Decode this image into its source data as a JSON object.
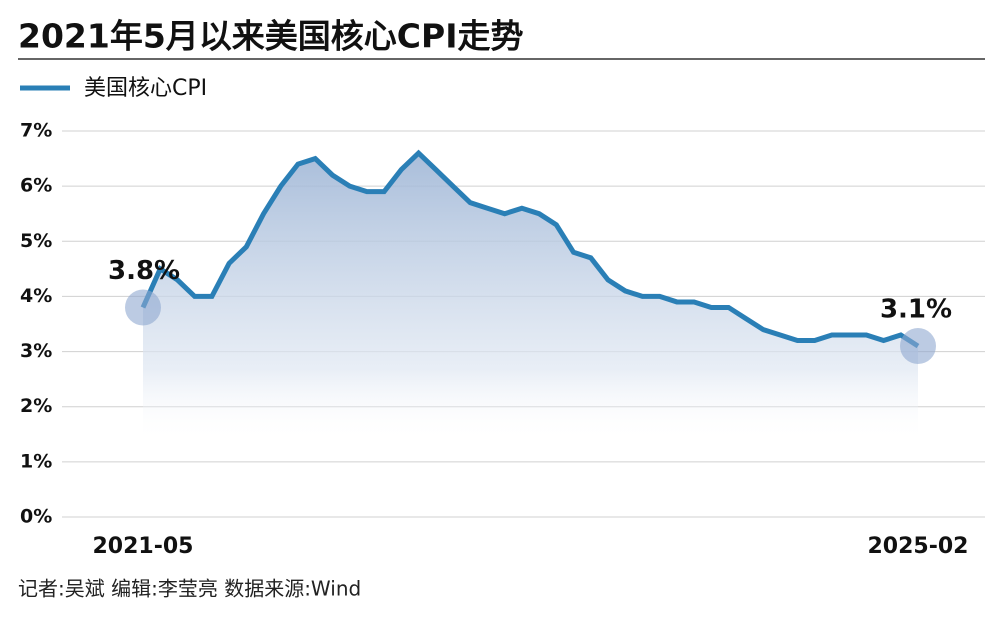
{
  "chart_data": {
    "type": "line",
    "title": "2021年5月以来美国核心CPI走势",
    "note": "记者:吴斌  编辑:李莹亮  数据来源:Wind",
    "categories": [
      "2021-05",
      null,
      null,
      null,
      null,
      null,
      null,
      null,
      null,
      null,
      null,
      null,
      null,
      null,
      null,
      null,
      null,
      null,
      null,
      null,
      null,
      null,
      null,
      null,
      null,
      null,
      null,
      null,
      null,
      null,
      null,
      null,
      null,
      null,
      null,
      null,
      null,
      null,
      null,
      null,
      null,
      null,
      null,
      null,
      null,
      "2025-02"
    ],
    "series": [
      {
        "name": "美国核心CPI",
        "color": "#2a7fb6",
        "values": [
          3.8,
          4.5,
          4.3,
          4.0,
          4.0,
          4.6,
          4.9,
          5.5,
          6.0,
          6.4,
          6.5,
          6.2,
          6.0,
          5.9,
          5.9,
          6.3,
          6.6,
          6.3,
          6.0,
          5.7,
          5.6,
          5.5,
          5.6,
          5.5,
          5.3,
          4.8,
          4.7,
          4.3,
          4.1,
          4.0,
          4.0,
          3.9,
          3.9,
          3.8,
          3.8,
          3.6,
          3.4,
          3.3,
          3.2,
          3.2,
          3.3,
          3.3,
          3.3,
          3.2,
          3.3,
          3.1
        ],
        "value_labels": [
          "3.8%",
          null,
          null,
          null,
          null,
          null,
          null,
          null,
          null,
          null,
          null,
          null,
          null,
          null,
          null,
          null,
          null,
          null,
          null,
          null,
          null,
          null,
          null,
          null,
          null,
          null,
          null,
          null,
          null,
          null,
          null,
          null,
          null,
          null,
          null,
          null,
          null,
          null,
          null,
          null,
          null,
          null,
          null,
          null,
          null,
          "3.1%"
        ]
      }
    ],
    "ylim": [
      0,
      7
    ],
    "yticks": [
      {
        "value": 0,
        "label": "0%"
      },
      {
        "value": 1,
        "label": "1%"
      },
      {
        "value": 2,
        "label": "2%"
      },
      {
        "value": 3,
        "label": "3%"
      },
      {
        "value": 4,
        "label": "4%"
      },
      {
        "value": 5,
        "label": "5%"
      },
      {
        "value": 6,
        "label": "6%"
      },
      {
        "value": 7,
        "label": "7%"
      }
    ],
    "grid": true
  }
}
